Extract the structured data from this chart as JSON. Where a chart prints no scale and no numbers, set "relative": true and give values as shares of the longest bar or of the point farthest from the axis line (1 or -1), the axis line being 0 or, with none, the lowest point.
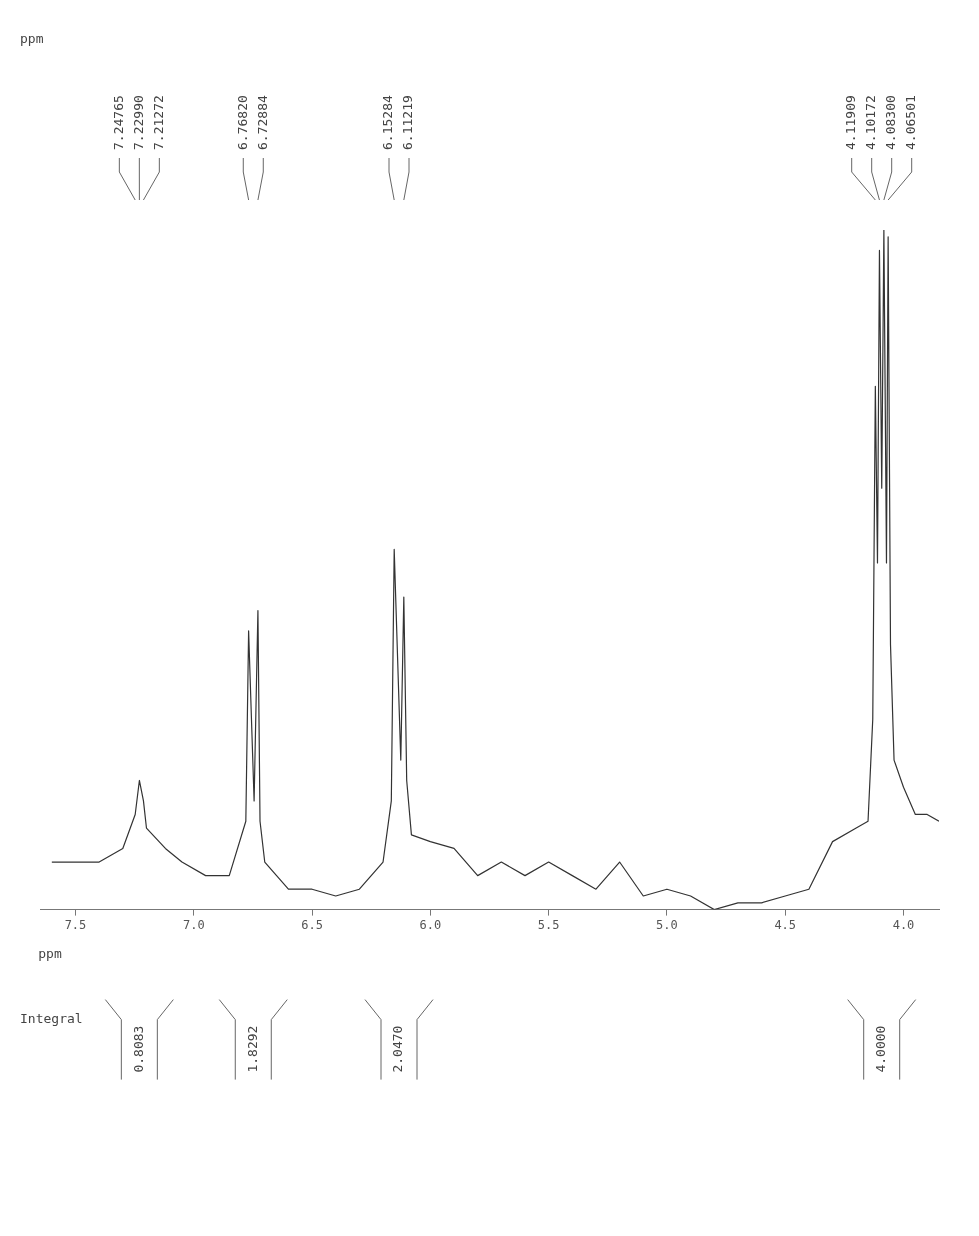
{
  "chart_data": {
    "type": "line",
    "relative": true,
    "color": "#333333",
    "xlabel": "ppm",
    "xlim": [
      7.65,
      3.85
    ],
    "xticks": [
      {
        "value": 4,
        "label": "4.0"
      },
      4.5,
      {
        "value": 5,
        "label": "5.0"
      },
      5.5,
      {
        "value": 6,
        "label": "6.0"
      },
      6.5,
      {
        "value": 7,
        "label": "7.0"
      },
      7.5
    ],
    "x": [
      3.85,
      3.9,
      3.95,
      4.0,
      4.04,
      4.055,
      4.06501,
      4.072,
      4.083,
      4.092,
      4.10172,
      4.11,
      4.11909,
      4.13,
      4.15,
      4.2,
      4.3,
      4.4,
      4.5,
      4.6,
      4.7,
      4.8,
      4.9,
      5.0,
      5.1,
      5.2,
      5.3,
      5.4,
      5.5,
      5.6,
      5.7,
      5.8,
      5.9,
      6.0,
      6.08,
      6.1,
      6.11219,
      6.125,
      6.15284,
      6.165,
      6.2,
      6.3,
      6.4,
      6.5,
      6.6,
      6.7,
      6.72,
      6.72884,
      6.745,
      6.7682,
      6.78,
      6.85,
      6.95,
      7.05,
      7.12,
      7.2,
      7.21272,
      7.2299,
      7.24765,
      7.3,
      7.4,
      7.5,
      7.6
    ],
    "values": [
      0.13,
      0.14,
      0.14,
      0.18,
      0.22,
      0.39,
      0.99,
      0.51,
      1.0,
      0.62,
      0.97,
      0.51,
      0.77,
      0.28,
      0.13,
      0.12,
      0.1,
      0.03,
      0.02,
      0.01,
      0.01,
      0,
      0.02,
      0.03,
      0.02,
      0.07,
      0.03,
      0.05,
      0.07,
      0.05,
      0.07,
      0.05,
      0.09,
      0.1,
      0.11,
      0.19,
      0.46,
      0.22,
      0.53,
      0.16,
      0.07,
      0.03,
      0.02,
      0.03,
      0.03,
      0.07,
      0.13,
      0.44,
      0.16,
      0.41,
      0.13,
      0.05,
      0.05,
      0.07,
      0.09,
      0.12,
      0.16,
      0.19,
      0.14,
      0.09,
      0.07,
      0.07,
      0.07
    ],
    "annotations": [
      {
        "text": "4.06501",
        "x": 4.06501
      },
      {
        "text": "4.08300",
        "x": 4.083
      },
      {
        "text": "4.10172",
        "x": 4.10172
      },
      {
        "text": "4.11909",
        "x": 4.11909
      },
      {
        "text": "6.11219",
        "x": 6.11219
      },
      {
        "text": "6.15284",
        "x": 6.15284
      },
      {
        "text": "6.72884",
        "x": 6.72884
      },
      {
        "text": "6.76820",
        "x": 6.7682
      },
      {
        "text": "7.21272",
        "x": 7.21272
      },
      {
        "text": "7.22990",
        "x": 7.2299
      },
      {
        "text": "7.24765",
        "x": 7.24765
      },
      "ppm",
      "Integral",
      "4.0000",
      "2.0470",
      "1.8292",
      "0.8083"
    ]
  }
}
